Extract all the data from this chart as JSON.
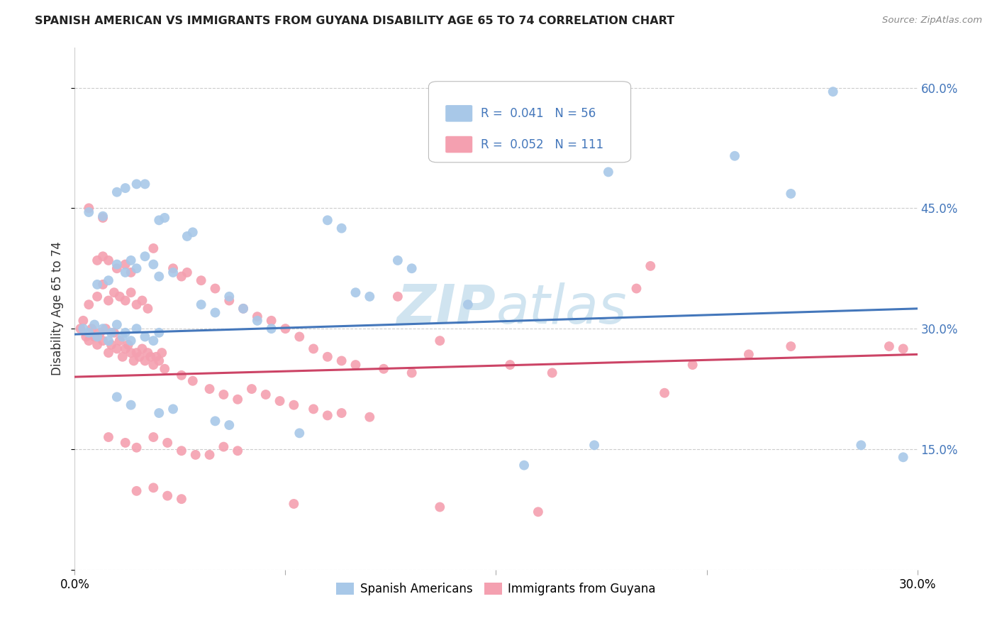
{
  "title": "SPANISH AMERICAN VS IMMIGRANTS FROM GUYANA DISABILITY AGE 65 TO 74 CORRELATION CHART",
  "source": "Source: ZipAtlas.com",
  "ylabel": "Disability Age 65 to 74",
  "xmin": 0.0,
  "xmax": 0.3,
  "ymin": 0.0,
  "ymax": 0.65,
  "yticks": [
    0.0,
    0.15,
    0.3,
    0.45,
    0.6
  ],
  "ytick_labels": [
    "",
    "15.0%",
    "30.0%",
    "45.0%",
    "60.0%"
  ],
  "xticks": [
    0.0,
    0.075,
    0.15,
    0.225,
    0.3
  ],
  "xtick_labels": [
    "0.0%",
    "",
    "",
    "",
    "30.0%"
  ],
  "blue_color": "#a8c8e8",
  "pink_color": "#f4a0b0",
  "blue_line_color": "#4477bb",
  "pink_line_color": "#cc4466",
  "watermark_color": "#d0e4f0",
  "blue_scatter": [
    [
      0.003,
      0.3
    ],
    [
      0.005,
      0.295
    ],
    [
      0.007,
      0.305
    ],
    [
      0.008,
      0.29
    ],
    [
      0.01,
      0.3
    ],
    [
      0.012,
      0.285
    ],
    [
      0.013,
      0.295
    ],
    [
      0.015,
      0.305
    ],
    [
      0.017,
      0.29
    ],
    [
      0.018,
      0.295
    ],
    [
      0.02,
      0.285
    ],
    [
      0.022,
      0.3
    ],
    [
      0.025,
      0.29
    ],
    [
      0.028,
      0.285
    ],
    [
      0.03,
      0.295
    ],
    [
      0.008,
      0.355
    ],
    [
      0.012,
      0.36
    ],
    [
      0.015,
      0.38
    ],
    [
      0.018,
      0.37
    ],
    [
      0.02,
      0.385
    ],
    [
      0.022,
      0.375
    ],
    [
      0.025,
      0.39
    ],
    [
      0.028,
      0.38
    ],
    [
      0.03,
      0.365
    ],
    [
      0.035,
      0.37
    ],
    [
      0.005,
      0.445
    ],
    [
      0.01,
      0.44
    ],
    [
      0.015,
      0.47
    ],
    [
      0.018,
      0.475
    ],
    [
      0.022,
      0.48
    ],
    [
      0.025,
      0.48
    ],
    [
      0.03,
      0.435
    ],
    [
      0.032,
      0.438
    ],
    [
      0.04,
      0.415
    ],
    [
      0.042,
      0.42
    ],
    [
      0.045,
      0.33
    ],
    [
      0.05,
      0.32
    ],
    [
      0.055,
      0.34
    ],
    [
      0.06,
      0.325
    ],
    [
      0.065,
      0.31
    ],
    [
      0.07,
      0.3
    ],
    [
      0.09,
      0.435
    ],
    [
      0.095,
      0.425
    ],
    [
      0.1,
      0.345
    ],
    [
      0.105,
      0.34
    ],
    [
      0.115,
      0.385
    ],
    [
      0.12,
      0.375
    ],
    [
      0.14,
      0.33
    ],
    [
      0.015,
      0.215
    ],
    [
      0.02,
      0.205
    ],
    [
      0.03,
      0.195
    ],
    [
      0.035,
      0.2
    ],
    [
      0.05,
      0.185
    ],
    [
      0.055,
      0.18
    ],
    [
      0.08,
      0.17
    ],
    [
      0.16,
      0.13
    ],
    [
      0.185,
      0.155
    ],
    [
      0.27,
      0.595
    ],
    [
      0.235,
      0.515
    ],
    [
      0.19,
      0.495
    ],
    [
      0.255,
      0.468
    ],
    [
      0.28,
      0.155
    ],
    [
      0.295,
      0.14
    ]
  ],
  "pink_scatter": [
    [
      0.002,
      0.3
    ],
    [
      0.003,
      0.31
    ],
    [
      0.004,
      0.29
    ],
    [
      0.005,
      0.285
    ],
    [
      0.006,
      0.3
    ],
    [
      0.007,
      0.29
    ],
    [
      0.008,
      0.28
    ],
    [
      0.009,
      0.295
    ],
    [
      0.01,
      0.285
    ],
    [
      0.011,
      0.3
    ],
    [
      0.012,
      0.27
    ],
    [
      0.013,
      0.28
    ],
    [
      0.014,
      0.295
    ],
    [
      0.015,
      0.275
    ],
    [
      0.016,
      0.285
    ],
    [
      0.017,
      0.265
    ],
    [
      0.018,
      0.275
    ],
    [
      0.019,
      0.28
    ],
    [
      0.02,
      0.27
    ],
    [
      0.021,
      0.26
    ],
    [
      0.022,
      0.27
    ],
    [
      0.023,
      0.265
    ],
    [
      0.024,
      0.275
    ],
    [
      0.025,
      0.26
    ],
    [
      0.026,
      0.27
    ],
    [
      0.027,
      0.265
    ],
    [
      0.028,
      0.255
    ],
    [
      0.029,
      0.265
    ],
    [
      0.03,
      0.26
    ],
    [
      0.031,
      0.27
    ],
    [
      0.005,
      0.33
    ],
    [
      0.008,
      0.34
    ],
    [
      0.01,
      0.355
    ],
    [
      0.012,
      0.335
    ],
    [
      0.014,
      0.345
    ],
    [
      0.016,
      0.34
    ],
    [
      0.018,
      0.335
    ],
    [
      0.02,
      0.345
    ],
    [
      0.022,
      0.33
    ],
    [
      0.024,
      0.335
    ],
    [
      0.026,
      0.325
    ],
    [
      0.008,
      0.385
    ],
    [
      0.01,
      0.39
    ],
    [
      0.012,
      0.385
    ],
    [
      0.015,
      0.375
    ],
    [
      0.018,
      0.38
    ],
    [
      0.02,
      0.37
    ],
    [
      0.005,
      0.45
    ],
    [
      0.01,
      0.438
    ],
    [
      0.028,
      0.4
    ],
    [
      0.035,
      0.375
    ],
    [
      0.038,
      0.365
    ],
    [
      0.04,
      0.37
    ],
    [
      0.045,
      0.36
    ],
    [
      0.05,
      0.35
    ],
    [
      0.055,
      0.335
    ],
    [
      0.06,
      0.325
    ],
    [
      0.065,
      0.315
    ],
    [
      0.07,
      0.31
    ],
    [
      0.075,
      0.3
    ],
    [
      0.08,
      0.29
    ],
    [
      0.085,
      0.275
    ],
    [
      0.09,
      0.265
    ],
    [
      0.095,
      0.26
    ],
    [
      0.1,
      0.255
    ],
    [
      0.11,
      0.25
    ],
    [
      0.12,
      0.245
    ],
    [
      0.032,
      0.25
    ],
    [
      0.038,
      0.242
    ],
    [
      0.042,
      0.235
    ],
    [
      0.048,
      0.225
    ],
    [
      0.053,
      0.218
    ],
    [
      0.058,
      0.212
    ],
    [
      0.063,
      0.225
    ],
    [
      0.068,
      0.218
    ],
    [
      0.073,
      0.21
    ],
    [
      0.078,
      0.205
    ],
    [
      0.085,
      0.2
    ],
    [
      0.09,
      0.192
    ],
    [
      0.095,
      0.195
    ],
    [
      0.105,
      0.19
    ],
    [
      0.012,
      0.165
    ],
    [
      0.018,
      0.158
    ],
    [
      0.022,
      0.152
    ],
    [
      0.028,
      0.165
    ],
    [
      0.033,
      0.158
    ],
    [
      0.038,
      0.148
    ],
    [
      0.043,
      0.143
    ],
    [
      0.048,
      0.143
    ],
    [
      0.053,
      0.153
    ],
    [
      0.058,
      0.148
    ],
    [
      0.022,
      0.098
    ],
    [
      0.028,
      0.102
    ],
    [
      0.033,
      0.092
    ],
    [
      0.038,
      0.088
    ],
    [
      0.078,
      0.082
    ],
    [
      0.13,
      0.078
    ],
    [
      0.165,
      0.072
    ],
    [
      0.115,
      0.34
    ],
    [
      0.13,
      0.285
    ],
    [
      0.155,
      0.255
    ],
    [
      0.17,
      0.245
    ],
    [
      0.2,
      0.35
    ],
    [
      0.22,
      0.255
    ],
    [
      0.24,
      0.268
    ],
    [
      0.255,
      0.278
    ],
    [
      0.21,
      0.22
    ],
    [
      0.205,
      0.378
    ],
    [
      0.29,
      0.278
    ],
    [
      0.295,
      0.275
    ]
  ],
  "blue_line": [
    [
      0.0,
      0.293
    ],
    [
      0.3,
      0.325
    ]
  ],
  "pink_line": [
    [
      0.0,
      0.24
    ],
    [
      0.3,
      0.268
    ]
  ]
}
